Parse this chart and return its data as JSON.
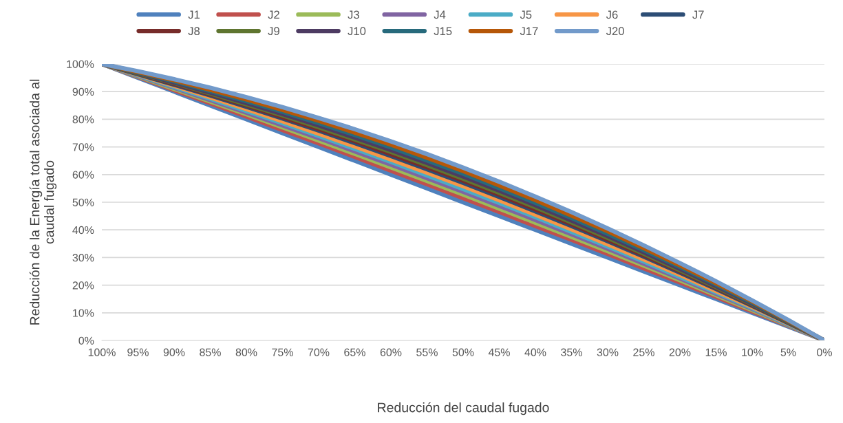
{
  "chart_data": {
    "type": "line",
    "xlabel": "Reducción del caudal fugado",
    "ylabel": "Reducción de la Energía total asociada al\ncaudal fugado",
    "categories": [
      "100%",
      "95%",
      "90%",
      "85%",
      "80%",
      "75%",
      "70%",
      "65%",
      "60%",
      "55%",
      "50%",
      "45%",
      "40%",
      "35%",
      "30%",
      "25%",
      "20%",
      "15%",
      "10%",
      "5%",
      "0%"
    ],
    "ylim": [
      0,
      100
    ],
    "yticks": [
      {
        "value": 0,
        "label": "0%"
      },
      {
        "value": 10,
        "label": "10%"
      },
      {
        "value": 20,
        "label": "20%"
      },
      {
        "value": 30,
        "label": "30%"
      },
      {
        "value": 40,
        "label": "40%"
      },
      {
        "value": 50,
        "label": "50%"
      },
      {
        "value": 60,
        "label": "60%"
      },
      {
        "value": 70,
        "label": "70%"
      },
      {
        "value": 80,
        "label": "80%"
      },
      {
        "value": 90,
        "label": "90%"
      },
      {
        "value": 100,
        "label": "100%"
      }
    ],
    "grid": "y",
    "legend": "top",
    "marker": "none",
    "line_style": "solid",
    "series": [
      {
        "name": "J1",
        "color": "#4f81bd",
        "values": [
          100,
          95,
          90,
          85,
          80,
          75,
          70,
          65,
          60,
          55,
          50,
          45,
          40,
          35,
          30,
          25,
          20,
          15,
          10,
          5,
          0
        ]
      },
      {
        "name": "J2",
        "color": "#c0504d",
        "values": [
          100,
          95.3,
          90.5,
          85.8,
          81,
          76.1,
          71.3,
          66.4,
          61.4,
          56.5,
          51.5,
          46.5,
          41.4,
          36.4,
          31.3,
          26.1,
          21,
          15.8,
          10.5,
          5.3,
          0
        ]
      },
      {
        "name": "J3",
        "color": "#9bbb59",
        "values": [
          100,
          95.5,
          91,
          86.4,
          81.8,
          77.1,
          72.3,
          67.5,
          62.6,
          57.7,
          52.8,
          47.7,
          42.6,
          37.5,
          32.3,
          27.1,
          21.8,
          16.4,
          11,
          5.5,
          0
        ]
      },
      {
        "name": "J4",
        "color": "#8064a2",
        "values": [
          100,
          95.7,
          91.4,
          86.9,
          82.4,
          77.8,
          73.2,
          68.4,
          63.6,
          58.7,
          53.8,
          48.7,
          43.6,
          38.4,
          33.2,
          27.8,
          22.4,
          16.9,
          11.4,
          5.7,
          0
        ]
      },
      {
        "name": "J5",
        "color": "#4bacc6",
        "values": [
          100,
          95.9,
          91.7,
          87.4,
          83,
          78.6,
          74,
          69.3,
          64.6,
          59.7,
          54.8,
          49.7,
          44.6,
          39.3,
          34,
          28.6,
          23,
          17.4,
          11.7,
          5.9,
          0
        ]
      },
      {
        "name": "J6",
        "color": "#f79646",
        "values": [
          100,
          96.1,
          92.1,
          87.9,
          83.7,
          79.3,
          74.8,
          70.2,
          65.5,
          60.7,
          55.8,
          50.7,
          45.5,
          40.2,
          34.8,
          29.3,
          23.7,
          17.9,
          12.1,
          6.1,
          0
        ]
      },
      {
        "name": "J7",
        "color": "#2c4d75",
        "values": [
          100,
          96.3,
          92.5,
          88.6,
          84.5,
          80.3,
          75.9,
          71.4,
          66.7,
          61.9,
          57,
          51.9,
          46.7,
          41.4,
          35.9,
          30.3,
          24.5,
          18.6,
          12.5,
          6.3,
          0
        ]
      },
      {
        "name": "J8",
        "color": "#772c2a",
        "values": [
          100,
          96.5,
          92.8,
          89,
          85,
          80.8,
          76.5,
          72.1,
          67.4,
          62.7,
          57.8,
          52.7,
          47.4,
          42.1,
          36.5,
          30.8,
          25,
          19,
          12.8,
          6.5,
          0
        ]
      },
      {
        "name": "J9",
        "color": "#5f7530",
        "values": [
          100,
          96.6,
          93.1,
          89.3,
          85.4,
          81.4,
          77.1,
          72.7,
          68.2,
          63.4,
          58.5,
          53.4,
          48.2,
          42.7,
          37.1,
          31.4,
          25.4,
          19.3,
          13.1,
          6.6,
          0
        ]
      },
      {
        "name": "J10",
        "color": "#4d3b62",
        "values": [
          100,
          96.8,
          93.3,
          89.7,
          85.9,
          81.9,
          77.8,
          73.4,
          68.9,
          64.2,
          59.3,
          54.2,
          48.9,
          43.4,
          37.8,
          31.9,
          25.9,
          19.7,
          13.3,
          6.8,
          0
        ]
      },
      {
        "name": "J15",
        "color": "#276a7c",
        "values": [
          100,
          96.9,
          93.7,
          90.2,
          86.6,
          82.7,
          78.6,
          74.3,
          69.8,
          65.1,
          60.3,
          55.1,
          49.8,
          44.3,
          38.6,
          32.7,
          26.6,
          20.2,
          13.7,
          6.9,
          0
        ]
      },
      {
        "name": "J17",
        "color": "#b65708",
        "values": [
          100,
          97.1,
          94.1,
          90.7,
          87.2,
          83.4,
          79.5,
          75.2,
          70.8,
          66.1,
          61.3,
          56.1,
          50.8,
          45.2,
          39.5,
          33.4,
          27.2,
          20.7,
          14.1,
          7.1,
          0
        ]
      },
      {
        "name": "J20",
        "color": "#729aca",
        "values": [
          100,
          97.4,
          94.5,
          91.4,
          88,
          84.4,
          80.5,
          76.4,
          72,
          67.4,
          62.5,
          57.4,
          52,
          46.4,
          40.5,
          34.4,
          28,
          21.4,
          14.5,
          7.4,
          0
        ]
      }
    ]
  }
}
